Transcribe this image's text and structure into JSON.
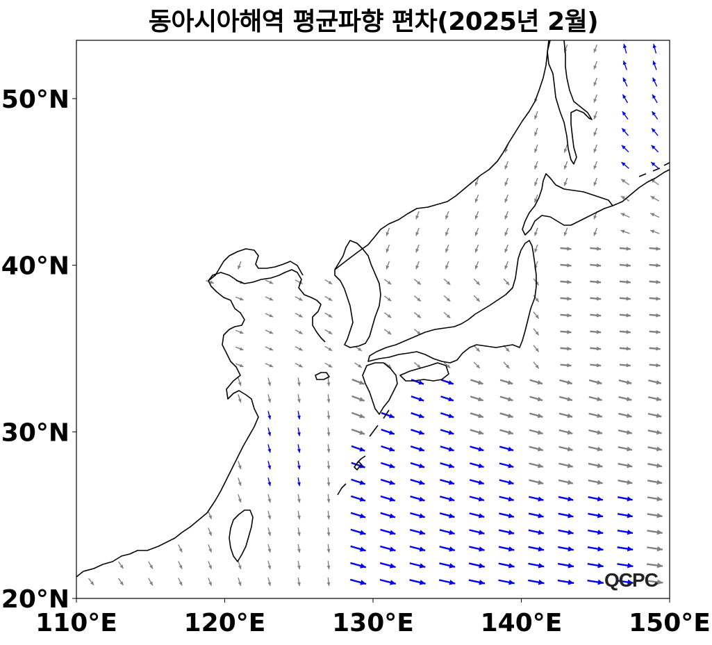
{
  "title": "동아시아해역 평균파향 편차(2025년 2월)",
  "logo_text": "QCPC",
  "map": {
    "lon_range": [
      110,
      150
    ],
    "lat_range": [
      20,
      53.5
    ],
    "x_ticks": [
      {
        "value": 110,
        "label": "110°E"
      },
      {
        "value": 120,
        "label": "120°E"
      },
      {
        "value": 130,
        "label": "130°E"
      },
      {
        "value": 140,
        "label": "140°E"
      },
      {
        "value": 150,
        "label": "150°E"
      }
    ],
    "y_ticks": [
      {
        "value": 20,
        "label": "20°N"
      },
      {
        "value": 30,
        "label": "30°N"
      },
      {
        "value": 40,
        "label": "40°N"
      },
      {
        "value": 50,
        "label": "50°N"
      }
    ],
    "vector_colors": {
      "positive": "#0000ee",
      "neutral": "#808080"
    },
    "coastline_color": "#000000",
    "grid_spacing_deg": 2
  }
}
